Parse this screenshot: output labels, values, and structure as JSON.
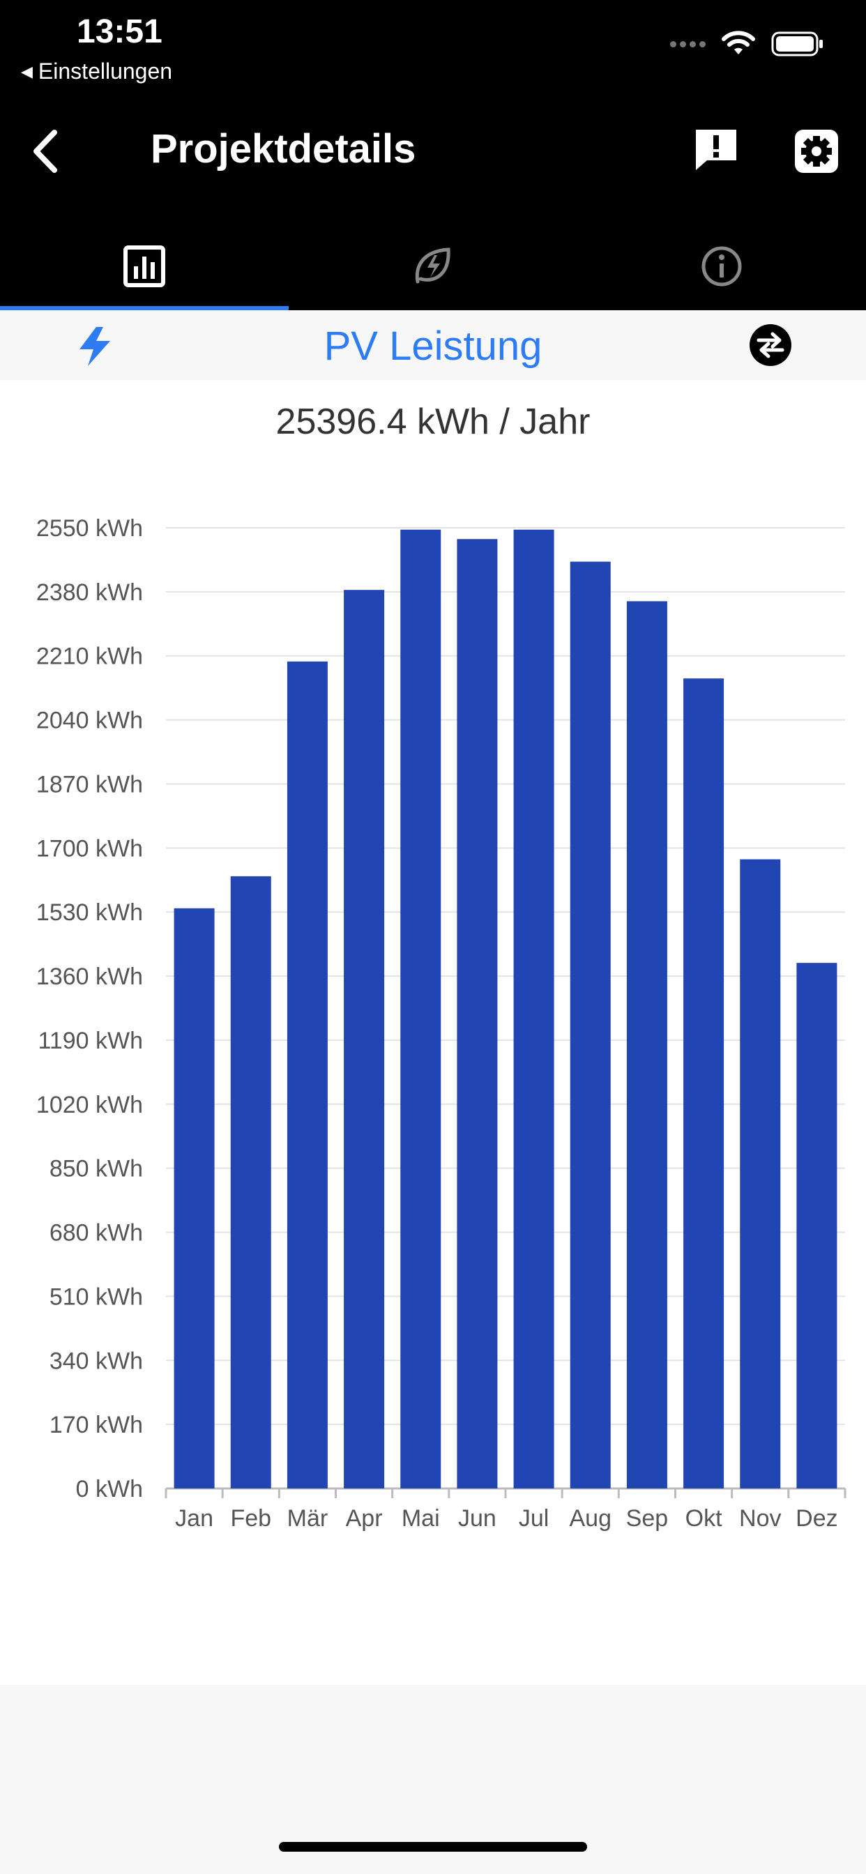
{
  "status_bar": {
    "time": "13:51",
    "back_app": "Einstellungen"
  },
  "nav": {
    "title": "Projektdetails",
    "back_icon": "chevron-left-icon",
    "report_icon": "feedback-icon",
    "settings_icon": "gear-icon"
  },
  "tabs": [
    {
      "icon": "bar-chart-icon",
      "active": true
    },
    {
      "icon": "energy-leaf-icon",
      "active": false
    },
    {
      "icon": "info-icon",
      "active": false
    }
  ],
  "subheader": {
    "title": "PV Leistung",
    "left_icon": "bolt-icon",
    "right_icon": "swap-icon"
  },
  "summary": {
    "total": "25396.4 kWh / Jahr"
  },
  "colors": {
    "bar": "#2145b3",
    "accent": "#2d7cf6",
    "header_bg": "#000000"
  },
  "chart_data": {
    "type": "bar",
    "categories": [
      "Jan",
      "Feb",
      "Mär",
      "Apr",
      "Mai",
      "Jun",
      "Jul",
      "Aug",
      "Sep",
      "Okt",
      "Nov",
      "Dez"
    ],
    "values": [
      1540,
      1625,
      2195,
      2385,
      2545,
      2520,
      2545,
      2460,
      2355,
      2150,
      1670,
      1395
    ],
    "y_ticks": [
      "0 kWh",
      "170 kWh",
      "340 kWh",
      "510 kWh",
      "680 kWh",
      "850 kWh",
      "1020 kWh",
      "1190 kWh",
      "1360 kWh",
      "1530 kWh",
      "1700 kWh",
      "1870 kWh",
      "2040 kWh",
      "2210 kWh",
      "2380 kWh",
      "2550 kWh"
    ],
    "ylim": [
      0,
      2550
    ],
    "unit": "kWh",
    "grid": true
  }
}
